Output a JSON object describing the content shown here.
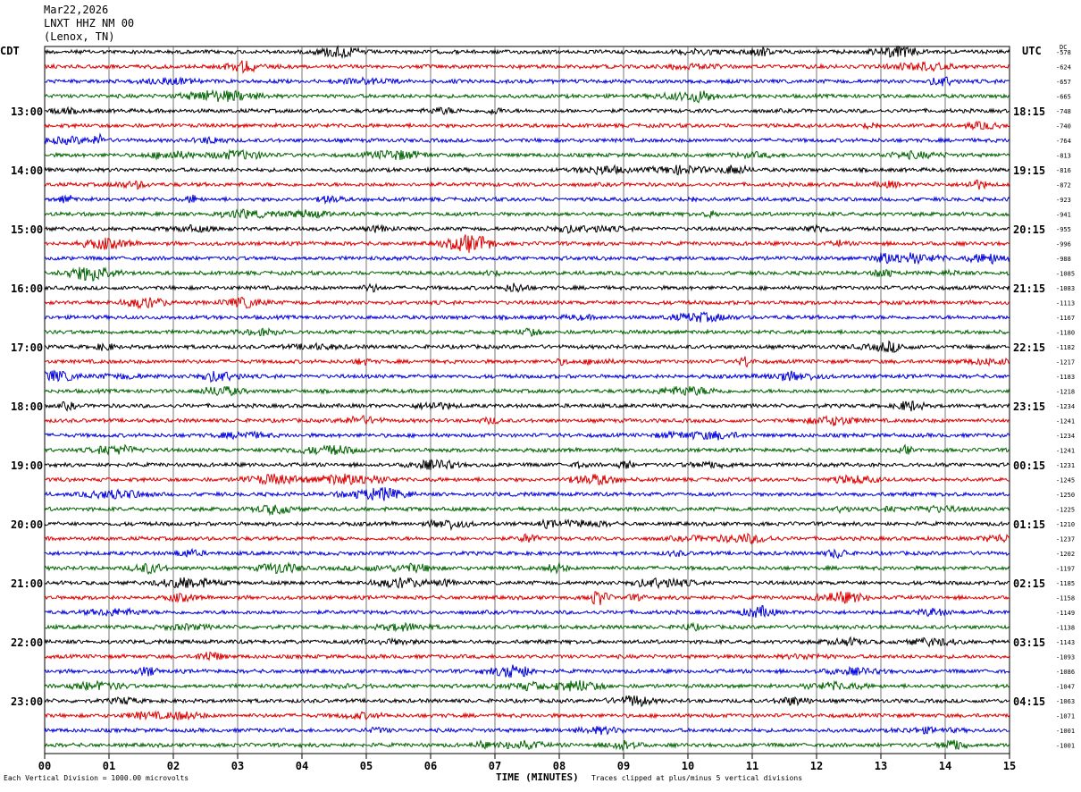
{
  "header": {
    "date": "Mar22,2026",
    "station": "LNXT HHZ NM 00",
    "location": "(Lenox, TN)"
  },
  "tz": {
    "left": "CDT",
    "right": "UTC",
    "dc": "DC"
  },
  "footer": {
    "note_left": "Each Vertical Division = 1000.00 microvolts",
    "title": "TIME (MINUTES)",
    "note_right": "Traces clipped at plus/minus 5 vertical divisions"
  },
  "chart_data": {
    "type": "line",
    "title": "",
    "xlabel": "TIME (MINUTES)",
    "ylabel": "",
    "x_ticks": [
      "00",
      "01",
      "02",
      "03",
      "04",
      "05",
      "06",
      "07",
      "08",
      "09",
      "10",
      "11",
      "12",
      "13",
      "14",
      "15"
    ],
    "xlim": [
      0,
      15
    ],
    "grid": "vertical",
    "trace_colors": [
      "#000000",
      "#dd0000",
      "#0000dd",
      "#006400"
    ],
    "left_labels": [
      "13:00",
      "14:00",
      "15:00",
      "16:00",
      "17:00",
      "18:00",
      "19:00",
      "20:00",
      "21:00",
      "22:00",
      "23:00"
    ],
    "right_labels": [
      "18:15",
      "19:15",
      "20:15",
      "21:15",
      "22:15",
      "23:15",
      "00:15",
      "01:15",
      "02:15",
      "03:15",
      "04:15"
    ],
    "dc_offsets": [
      "-578",
      "-624",
      "-657",
      "-665",
      "-748",
      "-740",
      "-764",
      "-813",
      "-816",
      "-872",
      "-923",
      "-941",
      "-955",
      "-996",
      "-988",
      "-1085",
      "-1083",
      "-1113",
      "-1167",
      "-1180",
      "-1182",
      "-1217",
      "-1183",
      "-1218",
      "-1234",
      "-1241",
      "-1234",
      "-1241",
      "-1231",
      "-1245",
      "-1250",
      "-1225",
      "-1210",
      "-1237",
      "-1202",
      "-1197",
      "-1185",
      "-1158",
      "-1149",
      "-1138",
      "-1143",
      "-1093",
      "-1086",
      "-1047",
      "-1063",
      "-1071",
      "-1001",
      "-1001"
    ]
  }
}
